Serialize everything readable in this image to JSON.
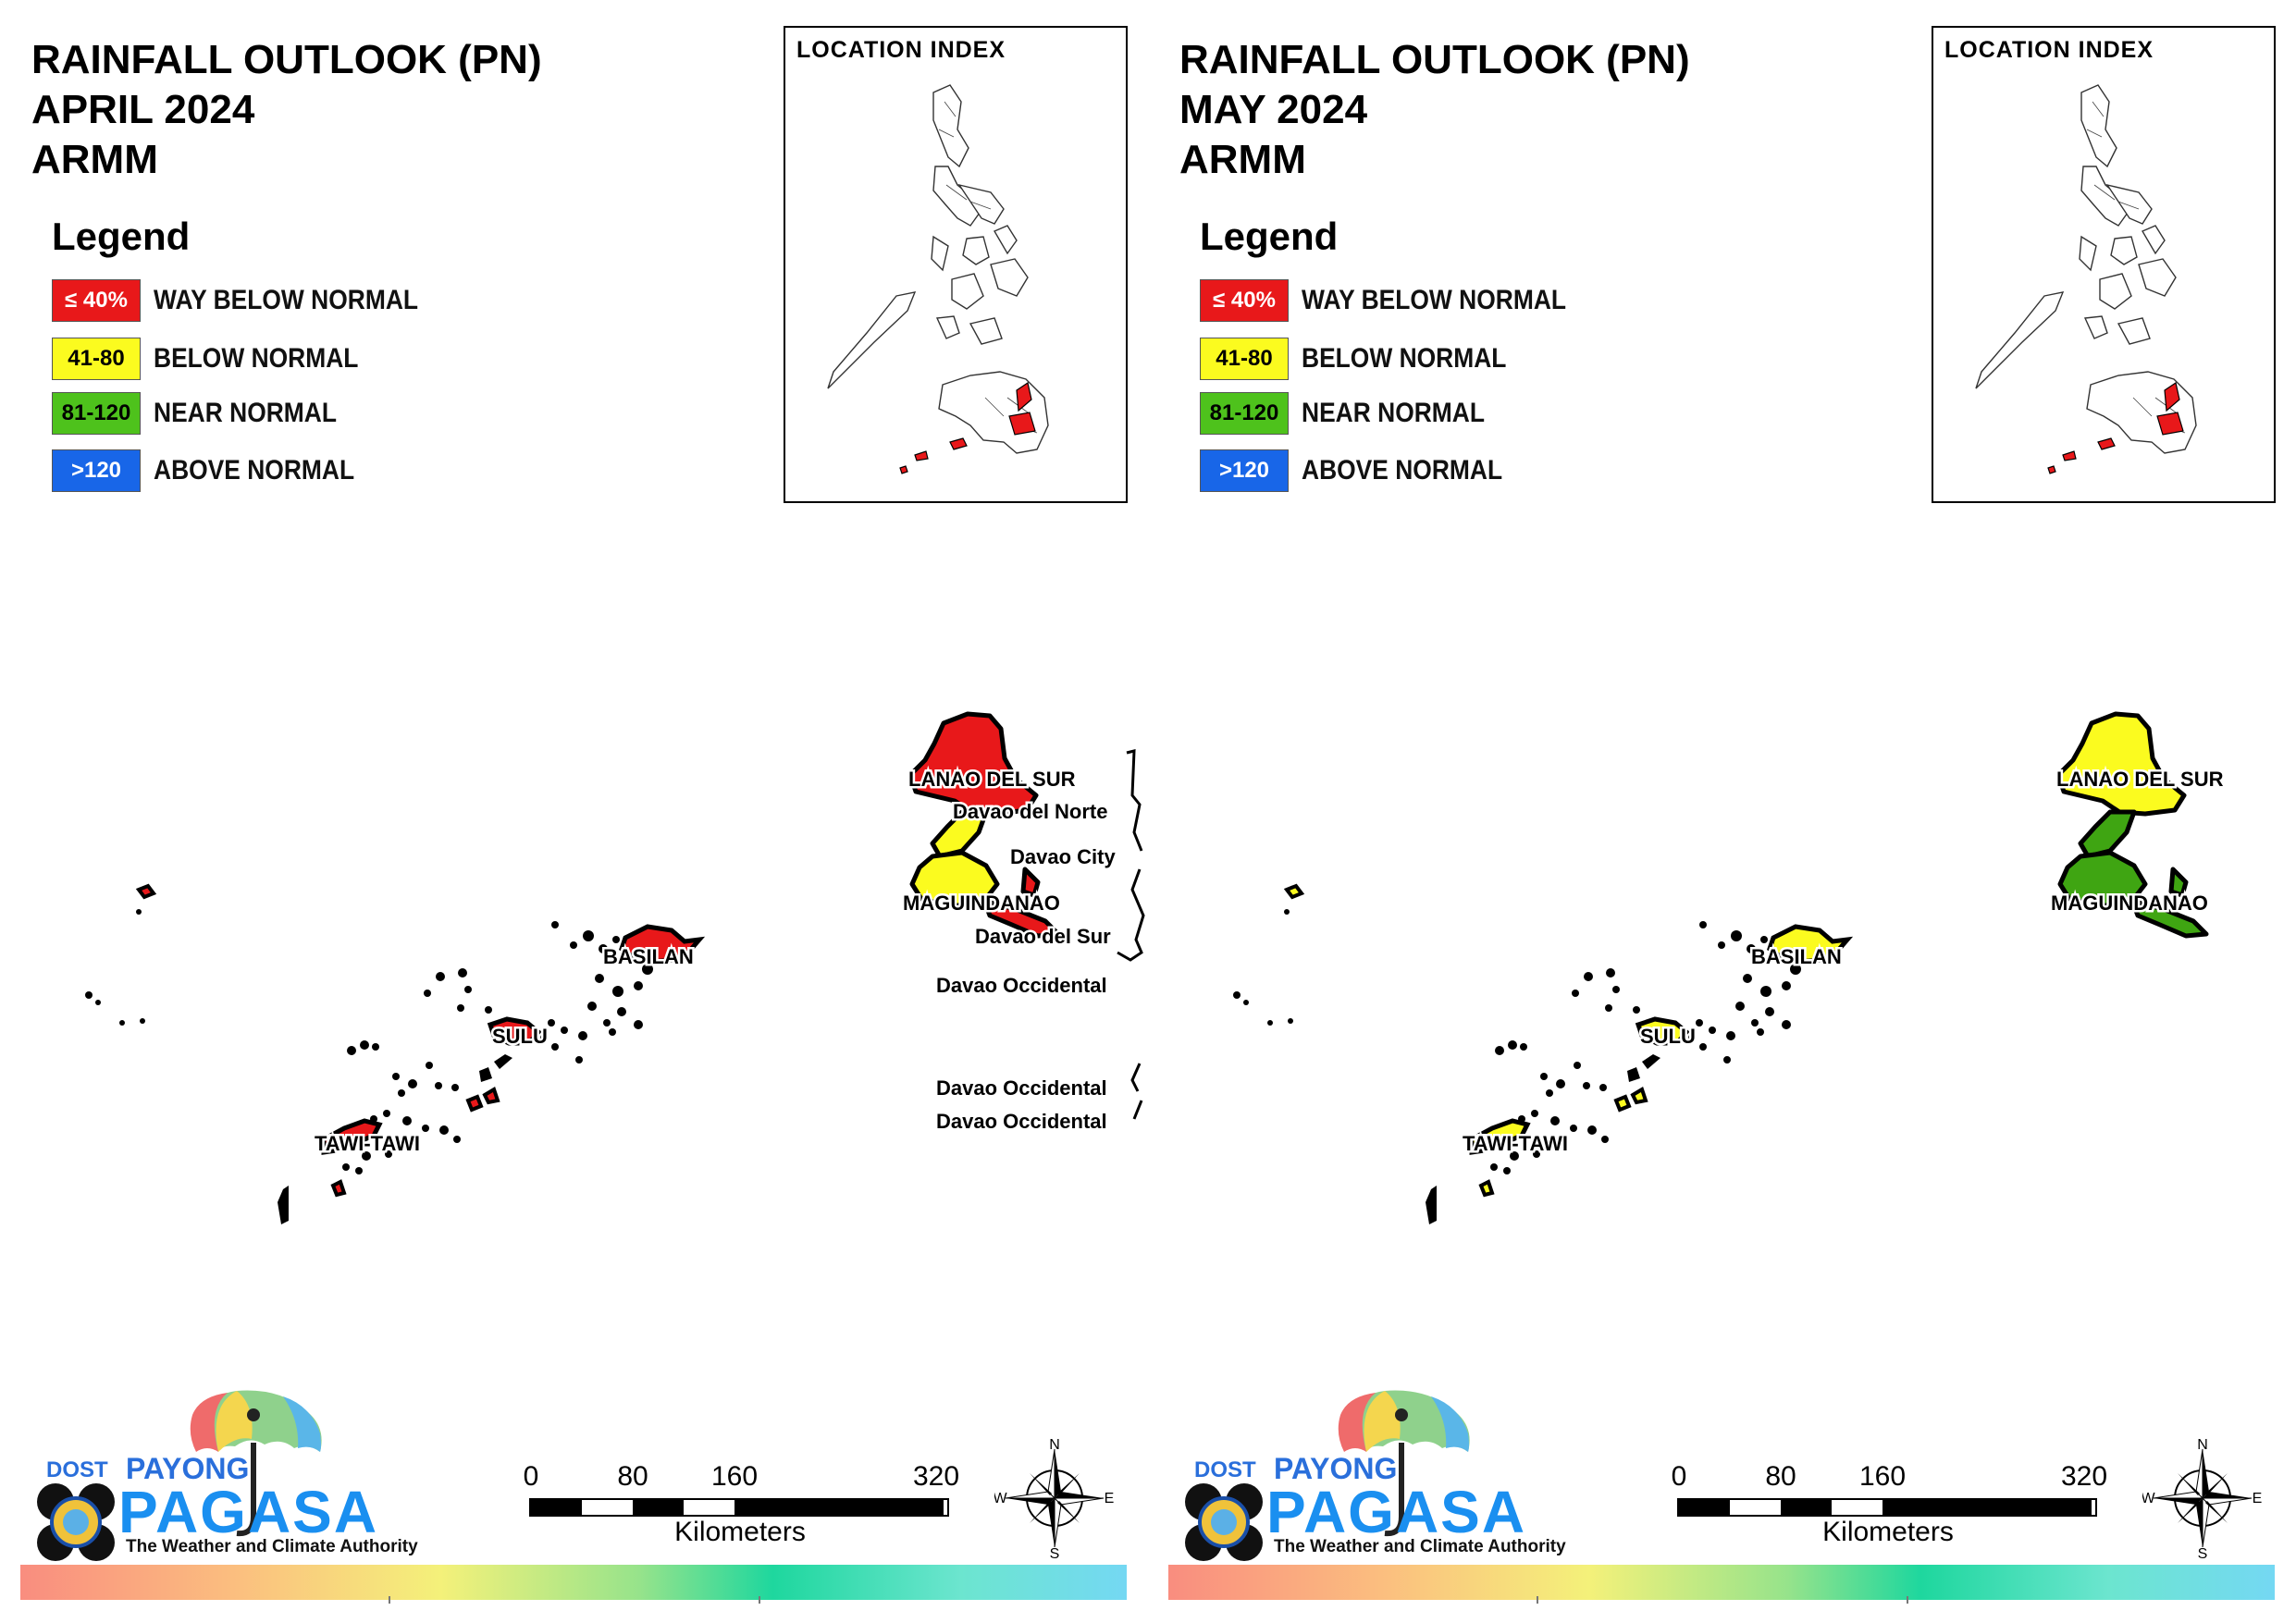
{
  "panels": [
    {
      "id": "april",
      "title_lines": [
        "RAINFALL OUTLOOK (PN)",
        "APRIL 2024",
        "ARMM"
      ],
      "legend": {
        "title": "Legend",
        "items": [
          {
            "code": "≤ 40%",
            "label": "WAY BELOW NORMAL",
            "color": "#e8181a",
            "text_color": "#ffffff"
          },
          {
            "code": "41-80",
            "label": "BELOW NORMAL",
            "color": "#fbfb1f",
            "text_color": "#000000"
          },
          {
            "code": "81-120",
            "label": "NEAR NORMAL",
            "color": "#4ec21c",
            "text_color": "#000000"
          },
          {
            "code": ">120",
            "label": "ABOVE NORMAL",
            "color": "#1866e8",
            "text_color": "#ffffff"
          }
        ]
      },
      "location_index": {
        "title": "LOCATION INDEX"
      },
      "map_labels": {
        "lanao_del_sur": "LANAO DEL SUR",
        "davao_del_norte": "Davao del Norte",
        "davao_city": "Davao City",
        "maguindanao": "MAGUINDANAO",
        "davao_del_sur": "Davao del Sur",
        "davao_occidental_1": "Davao Occidental",
        "davao_occidental_2": "Davao Occidental",
        "davao_occidental_3": "Davao Occidental",
        "basilan": "BASILAN",
        "sulu": "SULU",
        "tawi_tawi": "TAWI-TAWI"
      },
      "province_outlook": {
        "lanao_del_sur": "#e8181a",
        "lanao_del_sur_south": "#fbfb1f",
        "maguindanao": "#fbfb1f",
        "maguindanao_east": "#e8181a",
        "basilan": "#e8181a",
        "sulu": "#e8181a",
        "tawi_tawi": "#e8181a"
      }
    },
    {
      "id": "may",
      "title_lines": [
        "RAINFALL OUTLOOK (PN)",
        "MAY 2024",
        "ARMM"
      ],
      "legend": {
        "title": "Legend",
        "items": [
          {
            "code": "≤ 40%",
            "label": "WAY BELOW NORMAL",
            "color": "#e8181a",
            "text_color": "#ffffff"
          },
          {
            "code": "41-80",
            "label": "BELOW NORMAL",
            "color": "#fbfb1f",
            "text_color": "#000000"
          },
          {
            "code": "81-120",
            "label": "NEAR NORMAL",
            "color": "#4ec21c",
            "text_color": "#000000"
          },
          {
            "code": ">120",
            "label": "ABOVE NORMAL",
            "color": "#1866e8",
            "text_color": "#ffffff"
          }
        ]
      },
      "location_index": {
        "title": "LOCATION INDEX"
      },
      "map_labels": {
        "lanao_del_sur": "LANAO DEL SUR",
        "maguindanao": "MAGUINDANAO",
        "basilan": "BASILAN",
        "sulu": "SULU",
        "tawi_tawi": "TAWI-TAWI"
      },
      "province_outlook": {
        "lanao_del_sur": "#fbfb1f",
        "lanao_del_sur_south": "#3fa512",
        "maguindanao": "#3fa512",
        "maguindanao_east": "#3fa512",
        "basilan": "#fbfb1f",
        "sulu": "#fbfb1f",
        "tawi_tawi": "#fbfb1f"
      }
    }
  ],
  "branding": {
    "dost": "DOST",
    "payong": "PAYONG",
    "pagasa": "PAGASA",
    "tagline": "The Weather and Climate Authority"
  },
  "scale": {
    "ticks": [
      "0",
      "80",
      "160",
      "320"
    ],
    "unit": "Kilometers"
  },
  "compass": {
    "n": "N",
    "s": "S",
    "e": "E",
    "w": "W"
  }
}
